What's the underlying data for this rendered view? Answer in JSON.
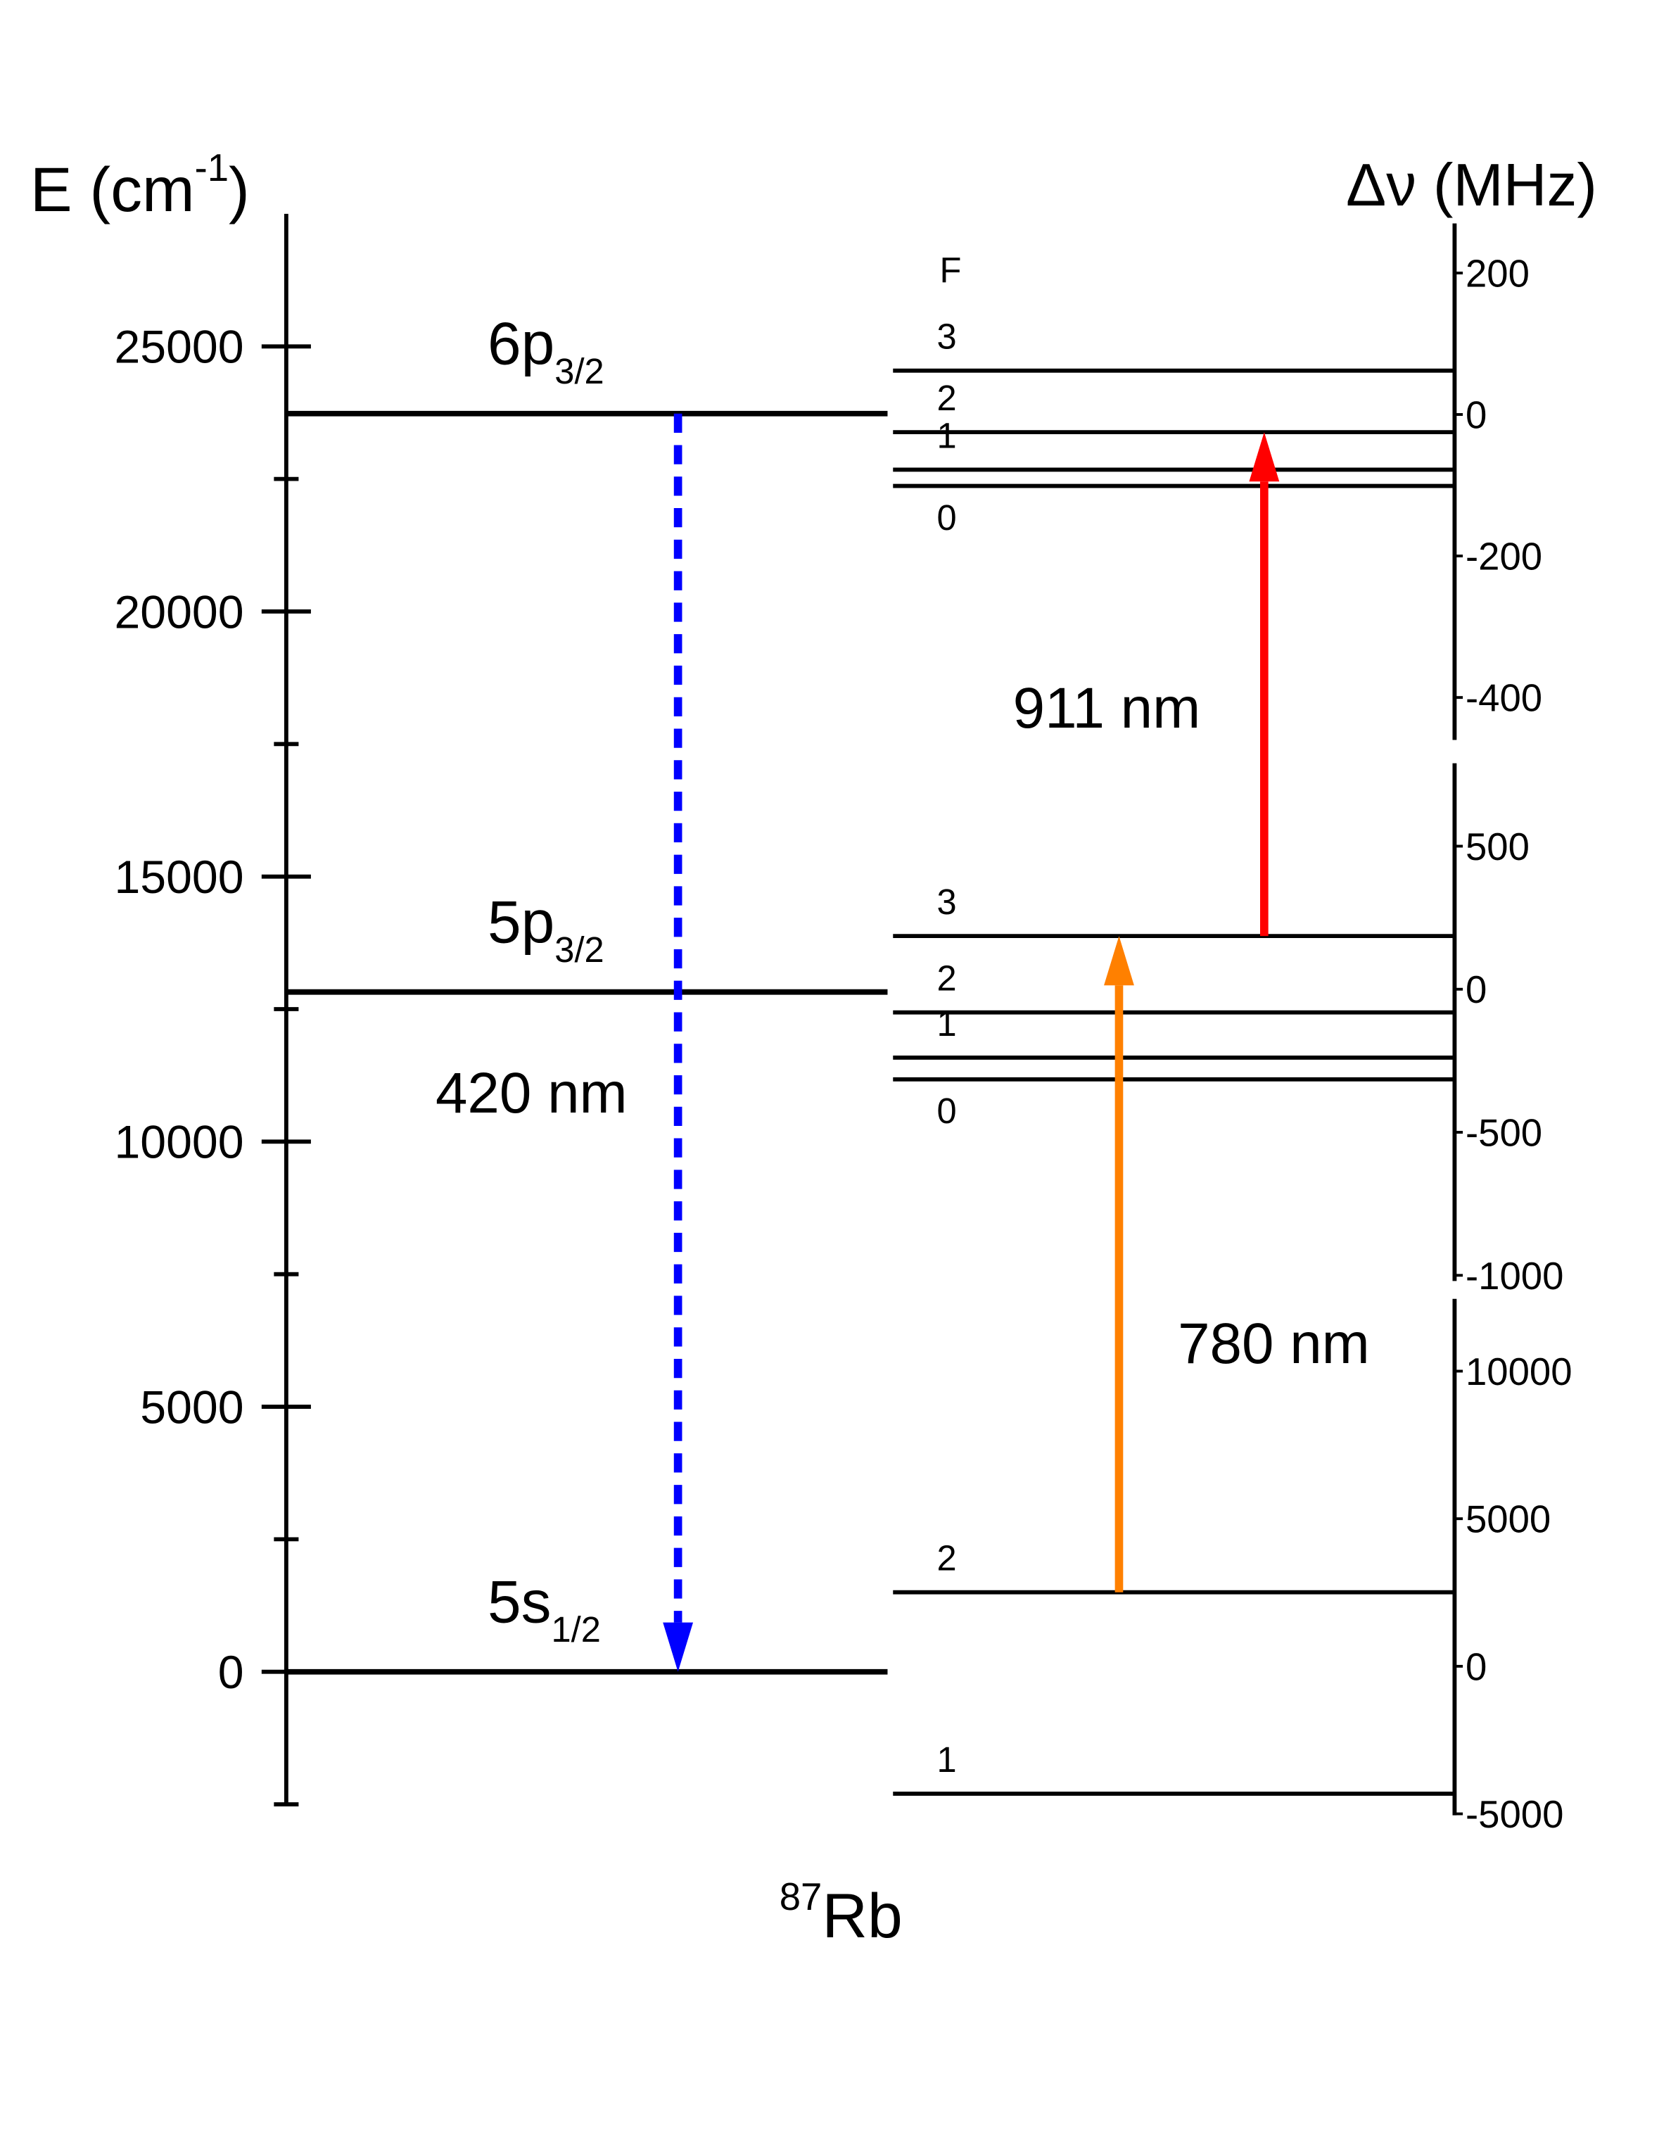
{
  "left_axis": {
    "label": "E (cm",
    "label_sup": "-1",
    "label_end": ")",
    "ylim": [
      -2500,
      27500
    ],
    "ticks": [
      0,
      5000,
      10000,
      15000,
      20000,
      25000
    ],
    "minor_ticks": [
      -2500,
      2500,
      7500,
      12500,
      17500,
      22500
    ]
  },
  "levels": [
    {
      "label": "6p",
      "sub": "3/2",
      "energy": 23733
    },
    {
      "label": "5p",
      "sub": "3/2",
      "energy": 12823
    },
    {
      "label": "5s",
      "sub": "1/2",
      "energy": 0
    }
  ],
  "f_header": "F",
  "right_axis": {
    "label": "Δν (MHz)",
    "segments": [
      {
        "ylim": [
          -460,
          270
        ],
        "ticks": [
          200,
          0,
          -200,
          -400
        ],
        "sublevels": [
          {
            "F": "3",
            "shift": 62
          },
          {
            "F": "2",
            "shift": -25
          },
          {
            "F": "1",
            "shift": -78
          },
          {
            "F": "0",
            "shift": -101
          }
        ]
      },
      {
        "ylim": [
          -1020,
          790
        ],
        "ticks": [
          500,
          0,
          -500,
          -1000
        ],
        "sublevels": [
          {
            "F": "3",
            "shift": 186
          },
          {
            "F": "2",
            "shift": -81
          },
          {
            "F": "1",
            "shift": -239
          },
          {
            "F": "0",
            "shift": -315
          }
        ]
      },
      {
        "ylim": [
          -5050,
          12450
        ],
        "ticks": [
          10000,
          5000,
          0,
          -5000
        ],
        "sublevels": [
          {
            "F": "2",
            "shift": 2507
          },
          {
            "F": "1",
            "shift": -4318
          }
        ]
      }
    ]
  },
  "transitions": [
    {
      "label": "420 nm",
      "color": "#0000ff",
      "dashed": true
    },
    {
      "label": "780 nm",
      "color": "#ff8000",
      "dashed": false
    },
    {
      "label": "911 nm",
      "color": "#ff0000",
      "dashed": false
    }
  ],
  "isotope": {
    "mass": "87",
    "symbol": "Rb"
  }
}
